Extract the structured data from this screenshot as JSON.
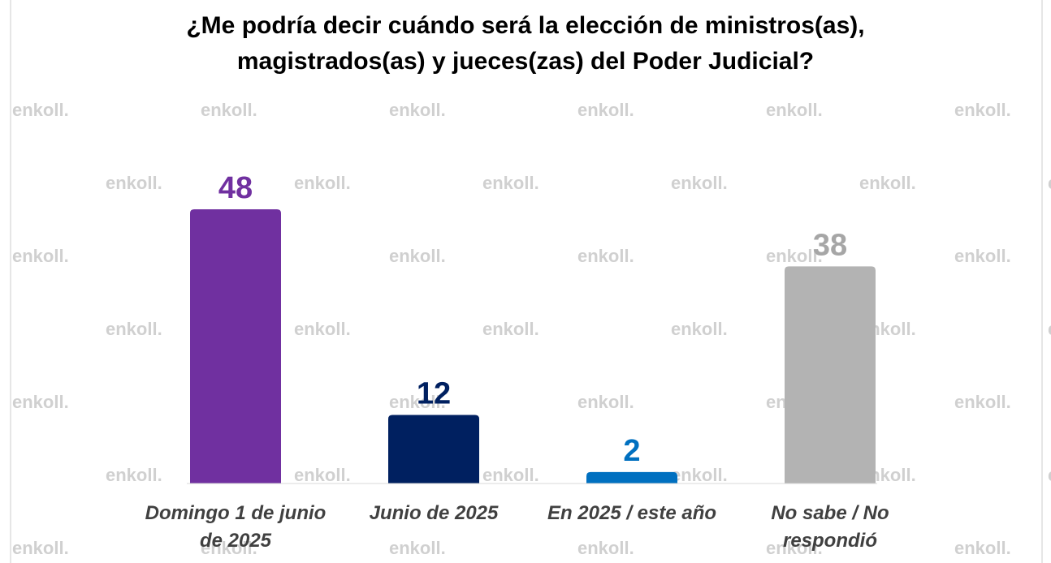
{
  "chart_data": {
    "type": "bar",
    "title": "¿Me podría decir cuándo será la elección de ministros(as), magistrados(as) y jueces(zas) del Poder Judicial?",
    "watermark": "enkoll.",
    "categories": [
      "Domingo 1 de junio de 2025",
      "Junio de 2025",
      "En 2025 / este año",
      "No sabe / No respondió"
    ],
    "values": [
      48,
      12,
      2,
      38
    ],
    "colors": [
      "#7030a0",
      "#002060",
      "#0070c0",
      "#b3b3b3"
    ],
    "label_colors": [
      "#7030a0",
      "#002060",
      "#0070c0",
      "#a6a6a6"
    ]
  }
}
